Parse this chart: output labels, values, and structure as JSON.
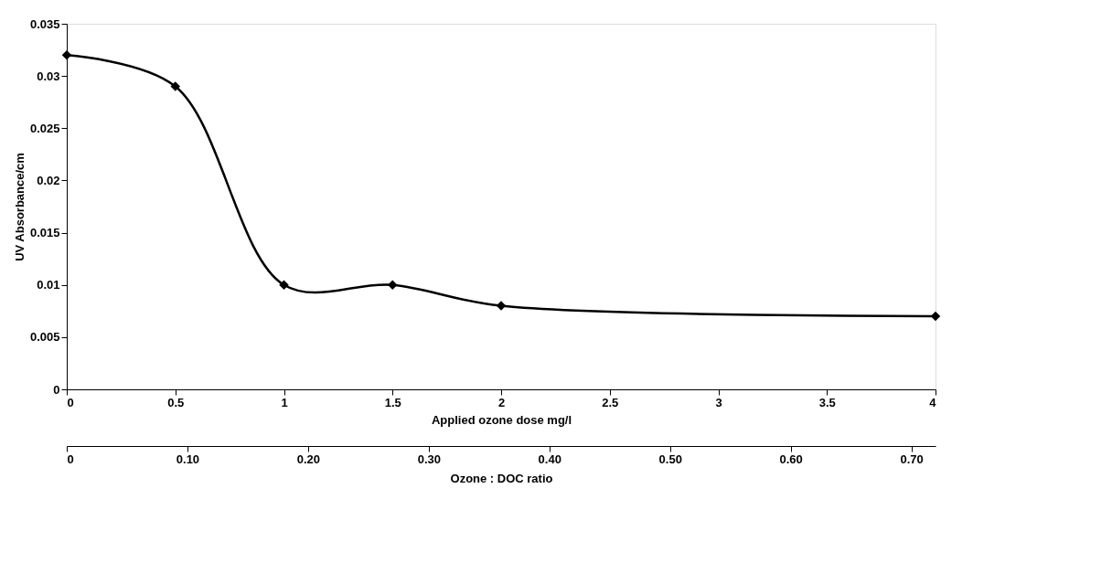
{
  "chart_data": {
    "type": "line",
    "xlabel": "Applied ozone dose mg/l",
    "ylabel": "UV Absorbance/cm",
    "x2label": "Ozone : DOC ratio",
    "x": [
      0,
      0.5,
      1,
      1.5,
      2,
      4
    ],
    "series": [
      {
        "color": "#000000",
        "values": [
          0.032,
          0.029,
          0.01,
          0.01,
          0.008,
          0.007
        ]
      }
    ],
    "xlim": [
      0,
      4
    ],
    "xticks": [
      0,
      0.5,
      1,
      1.5,
      2,
      2.5,
      3,
      3.5,
      4
    ],
    "ylim": [
      0,
      0.035
    ],
    "yticks": [
      0,
      0.005,
      0.01,
      0.015,
      0.02,
      0.025,
      0.03,
      0.035
    ],
    "x2lim": [
      0,
      0.72
    ],
    "x2ticks": [
      0,
      {
        "value": 0.1,
        "label": "0.10"
      },
      {
        "value": 0.2,
        "label": "0.20"
      },
      {
        "value": 0.3,
        "label": "0.30"
      },
      {
        "value": 0.4,
        "label": "0.40"
      },
      {
        "value": 0.5,
        "label": "0.50"
      },
      {
        "value": 0.6,
        "label": "0.60"
      },
      {
        "value": 0.7,
        "label": "0.70"
      }
    ],
    "grid": false,
    "marker": "diamond",
    "line_style": "solid"
  }
}
